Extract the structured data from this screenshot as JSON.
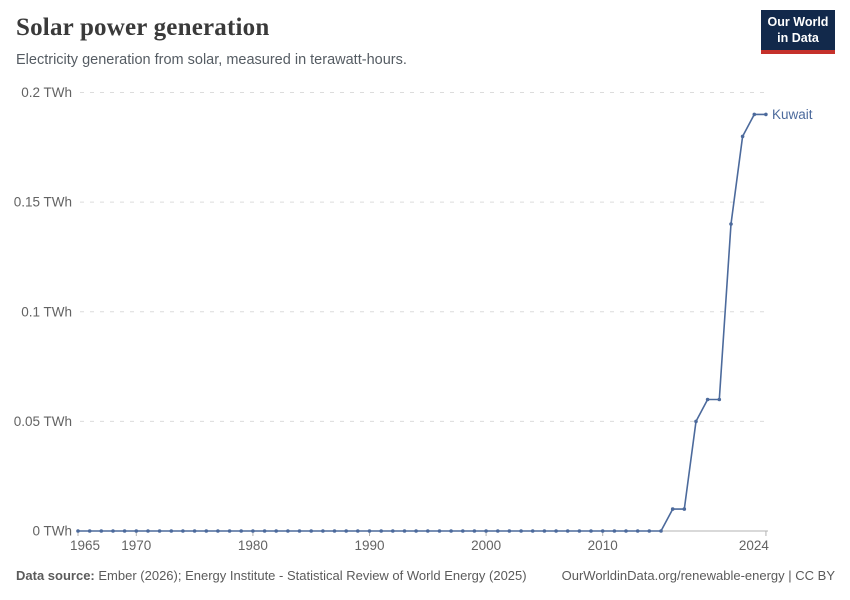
{
  "header": {
    "title": "Solar power generation",
    "subtitle": "Electricity generation from solar, measured in terawatt-hours."
  },
  "logo": {
    "line1": "Our World",
    "line2": "in Data",
    "bg_color": "#12294b",
    "accent_color": "#c5312b"
  },
  "chart_data": {
    "type": "line",
    "title": "Solar power generation",
    "xlabel": "",
    "ylabel": "TWh",
    "xlim": [
      1965,
      2024
    ],
    "ylim": [
      0,
      0.2
    ],
    "grid": "horizontal-dashed",
    "legend_position": "end-of-line-label",
    "x_ticks": [
      {
        "year": 1965,
        "label": "1965"
      },
      {
        "year": 1970,
        "label": "1970"
      },
      {
        "year": 1980,
        "label": "1980"
      },
      {
        "year": 1990,
        "label": "1990"
      },
      {
        "year": 2000,
        "label": "2000"
      },
      {
        "year": 2010,
        "label": "2010"
      },
      {
        "year": 2024,
        "label": "2024"
      }
    ],
    "y_ticks": [
      {
        "value": 0,
        "label": "0 TWh"
      },
      {
        "value": 0.05,
        "label": "0.05 TWh"
      },
      {
        "value": 0.1,
        "label": "0.1 TWh"
      },
      {
        "value": 0.15,
        "label": "0.15 TWh"
      },
      {
        "value": 0.2,
        "label": "0.2 TWh"
      }
    ],
    "series": [
      {
        "name": "Kuwait",
        "color": "#4c6a9c",
        "x_start": 1965,
        "values": [
          0,
          0,
          0,
          0,
          0,
          0,
          0,
          0,
          0,
          0,
          0,
          0,
          0,
          0,
          0,
          0,
          0,
          0,
          0,
          0,
          0,
          0,
          0,
          0,
          0,
          0,
          0,
          0,
          0,
          0,
          0,
          0,
          0,
          0,
          0,
          0,
          0,
          0,
          0,
          0,
          0,
          0,
          0,
          0,
          0,
          0,
          0,
          0,
          0,
          0,
          0,
          0.01,
          0.01,
          0.05,
          0.06,
          0.06,
          0.14,
          0.18,
          0.19,
          0.19
        ]
      }
    ]
  },
  "footer": {
    "source_label": "Data source:",
    "source_text": "Ember (2026); Energy Institute - Statistical Review of World Energy (2025)",
    "link_text": "OurWorldinData.org/renewable-energy | CC BY"
  }
}
